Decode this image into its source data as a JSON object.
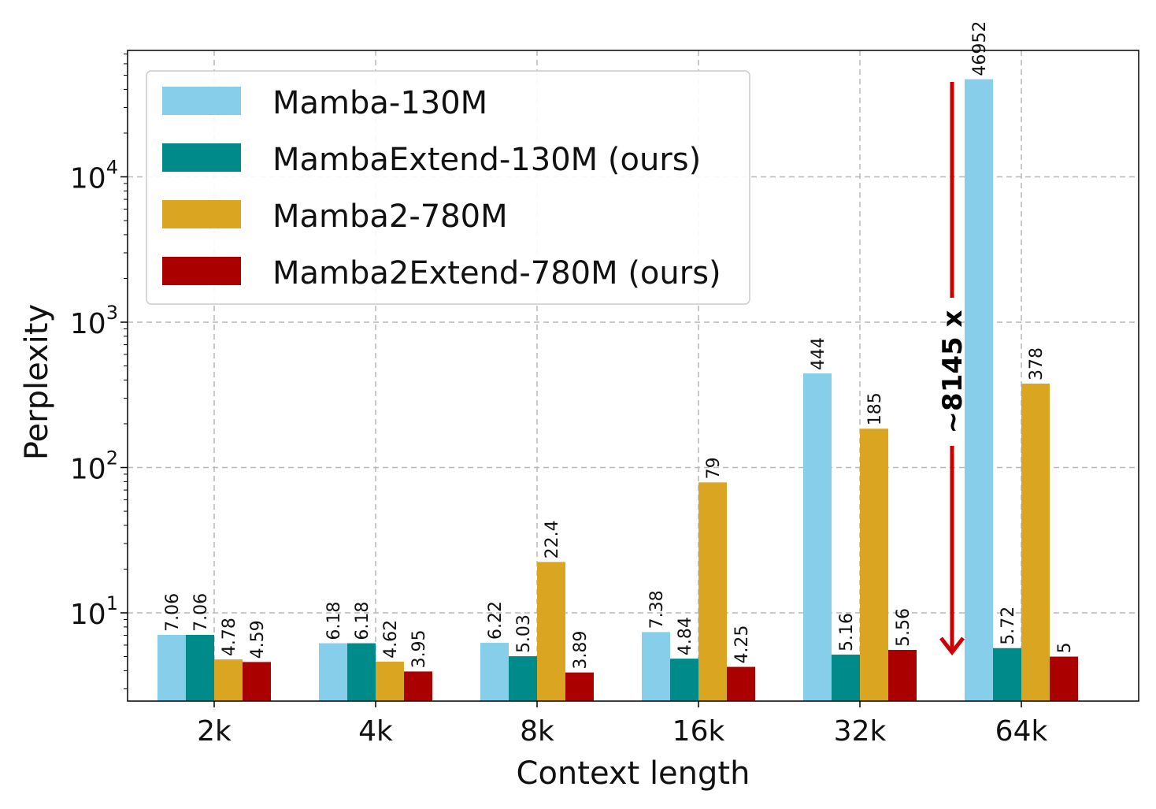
{
  "chart_data": {
    "type": "bar",
    "title": "",
    "xlabel": "Context length",
    "ylabel": "Perplexity",
    "yscale": "log",
    "ylim": [
      2.5,
      80000
    ],
    "grid": true,
    "legend_position": "top-left",
    "categories": [
      "2k",
      "4k",
      "8k",
      "16k",
      "32k",
      "64k"
    ],
    "y_ticks": [
      {
        "value": 10,
        "base": "10",
        "exp": "1"
      },
      {
        "value": 100,
        "base": "10",
        "exp": "2"
      },
      {
        "value": 1000,
        "base": "10",
        "exp": "3"
      },
      {
        "value": 10000,
        "base": "10",
        "exp": "4"
      }
    ],
    "series": [
      {
        "name": "Mamba-130M",
        "color": "#87CEEB",
        "values": [
          7.06,
          6.18,
          6.22,
          7.38,
          444,
          46952
        ],
        "labels": [
          "7.06",
          "6.18",
          "6.22",
          "7.38",
          "444",
          "46952"
        ]
      },
      {
        "name": "MambaExtend-130M (ours)",
        "color": "#008B8B",
        "values": [
          7.06,
          6.18,
          5.03,
          4.84,
          5.16,
          5.72
        ],
        "labels": [
          "7.06",
          "6.18",
          "5.03",
          "4.84",
          "5.16",
          "5.72"
        ]
      },
      {
        "name": "Mamba2-780M",
        "color": "#DAA520",
        "values": [
          4.78,
          4.62,
          22.4,
          79,
          185,
          378
        ],
        "labels": [
          "4.78",
          "4.62",
          "22.4",
          "79",
          "185",
          "378"
        ]
      },
      {
        "name": "Mamba2Extend-780M (ours)",
        "color": "#AA0000",
        "values": [
          4.59,
          3.95,
          3.89,
          4.25,
          5.56,
          5
        ],
        "labels": [
          "4.59",
          "3.95",
          "3.89",
          "4.25",
          "5.56",
          "5"
        ]
      }
    ],
    "annotation": {
      "text": "~8145 x",
      "arrow_color": "#CC0000",
      "from_value": 46952,
      "to_value": 5.72
    }
  }
}
